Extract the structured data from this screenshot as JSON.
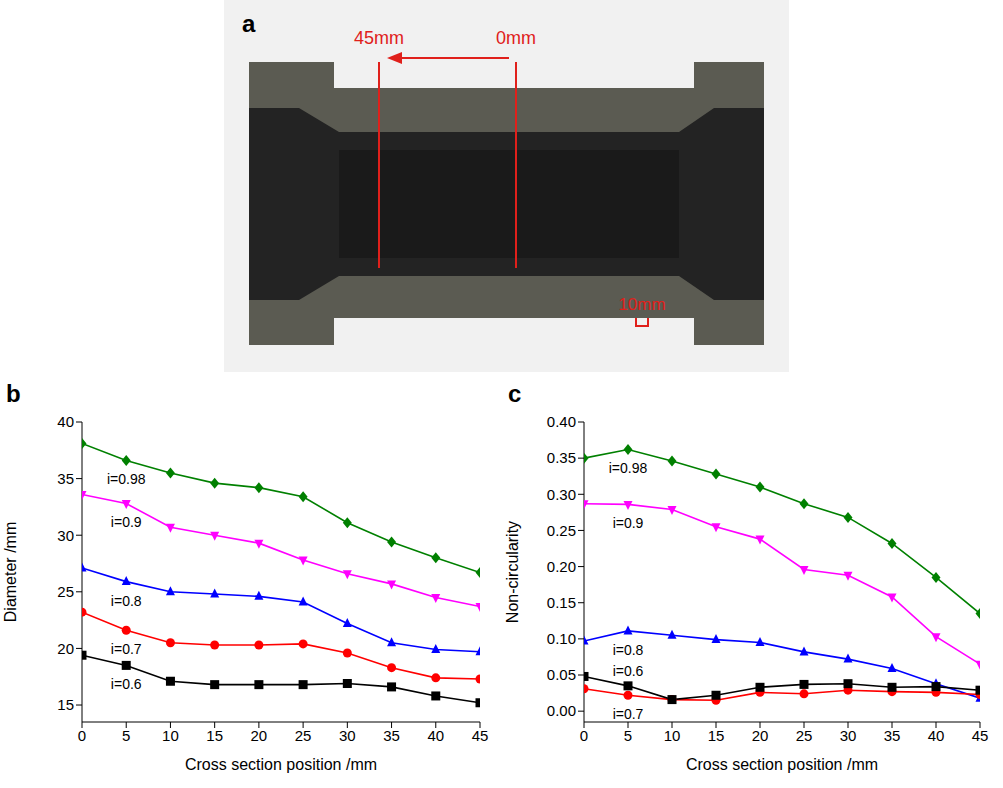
{
  "photo": {
    "panel_label": "a",
    "markers": [
      {
        "label": "45mm"
      },
      {
        "label": "0mm"
      }
    ],
    "scale_bar": "10mm"
  },
  "chart_data": [
    {
      "type": "line",
      "panel_label": "b",
      "x_label": "Cross section position /mm",
      "y_label": "Diameter /mm",
      "x": [
        0,
        5,
        10,
        15,
        20,
        25,
        30,
        35,
        40,
        45
      ],
      "xlim": [
        0,
        45
      ],
      "xticks": [
        0,
        5,
        10,
        15,
        20,
        25,
        30,
        35,
        40,
        45
      ],
      "ylim": [
        13.5,
        40
      ],
      "yticks": [
        15,
        20,
        25,
        30,
        35,
        40
      ],
      "grid": false,
      "series": [
        {
          "name": "i=0.98",
          "color": "#008000",
          "marker": "diamond",
          "values": [
            38.1,
            36.6,
            35.5,
            34.6,
            34.2,
            33.4,
            31.1,
            29.4,
            28.0,
            26.7
          ]
        },
        {
          "name": "i=0.9",
          "color": "#ff00ff",
          "marker": "triangle-down",
          "values": [
            33.6,
            32.8,
            30.7,
            30.0,
            29.3,
            27.8,
            26.6,
            25.7,
            24.5,
            23.7
          ]
        },
        {
          "name": "i=0.8",
          "color": "#0000ff",
          "marker": "triangle",
          "values": [
            27.1,
            25.9,
            25.0,
            24.8,
            24.6,
            24.1,
            22.2,
            20.5,
            19.9,
            19.7
          ]
        },
        {
          "name": "i=0.7",
          "color": "#ff0000",
          "marker": "circle",
          "values": [
            23.2,
            21.6,
            20.5,
            20.3,
            20.3,
            20.4,
            19.6,
            18.3,
            17.4,
            17.3
          ]
        },
        {
          "name": "i=0.6",
          "color": "#000000",
          "marker": "square",
          "values": [
            19.4,
            18.5,
            17.1,
            16.8,
            16.8,
            16.8,
            16.9,
            16.6,
            15.8,
            15.2
          ]
        }
      ]
    },
    {
      "type": "line",
      "panel_label": "c",
      "x_label": "Cross section position /mm",
      "y_label": "Non-circularity",
      "x": [
        0,
        5,
        10,
        15,
        20,
        25,
        30,
        35,
        40,
        45
      ],
      "xlim": [
        0,
        45
      ],
      "xticks": [
        0,
        5,
        10,
        15,
        20,
        25,
        30,
        35,
        40,
        45
      ],
      "ylim": [
        -0.015,
        0.4
      ],
      "yticks": [
        {
          "value": 0,
          "label": "0.00"
        },
        {
          "value": 0.05,
          "label": "0.05"
        },
        {
          "value": 0.1,
          "label": "0.10"
        },
        {
          "value": 0.15,
          "label": "0.15"
        },
        {
          "value": 0.2,
          "label": "0.20"
        },
        {
          "value": 0.25,
          "label": "0.25"
        },
        {
          "value": 0.3,
          "label": "0.30"
        },
        {
          "value": 0.35,
          "label": "0.35"
        },
        {
          "value": 0.4,
          "label": "0.40"
        }
      ],
      "grid": false,
      "series": [
        {
          "name": "i=0.98",
          "color": "#008000",
          "marker": "diamond",
          "values": [
            0.35,
            0.362,
            0.346,
            0.328,
            0.31,
            0.287,
            0.268,
            0.232,
            0.185,
            0.135
          ]
        },
        {
          "name": "i=0.9",
          "color": "#ff00ff",
          "marker": "triangle-down",
          "values": [
            0.287,
            0.286,
            0.279,
            0.255,
            0.238,
            0.196,
            0.188,
            0.158,
            0.103,
            0.065
          ]
        },
        {
          "name": "i=0.8",
          "color": "#0000ff",
          "marker": "triangle",
          "values": [
            0.097,
            0.111,
            0.105,
            0.099,
            0.095,
            0.082,
            0.072,
            0.059,
            0.038,
            0.018
          ]
        },
        {
          "name": "i=0.7",
          "color": "#ff0000",
          "marker": "circle",
          "values": [
            0.031,
            0.022,
            0.016,
            0.015,
            0.026,
            0.024,
            0.029,
            0.027,
            0.026,
            0.023
          ]
        },
        {
          "name": "i=0.6",
          "color": "#000000",
          "marker": "square",
          "values": [
            0.048,
            0.035,
            0.016,
            0.022,
            0.033,
            0.037,
            0.038,
            0.033,
            0.034,
            0.029
          ]
        }
      ]
    }
  ]
}
